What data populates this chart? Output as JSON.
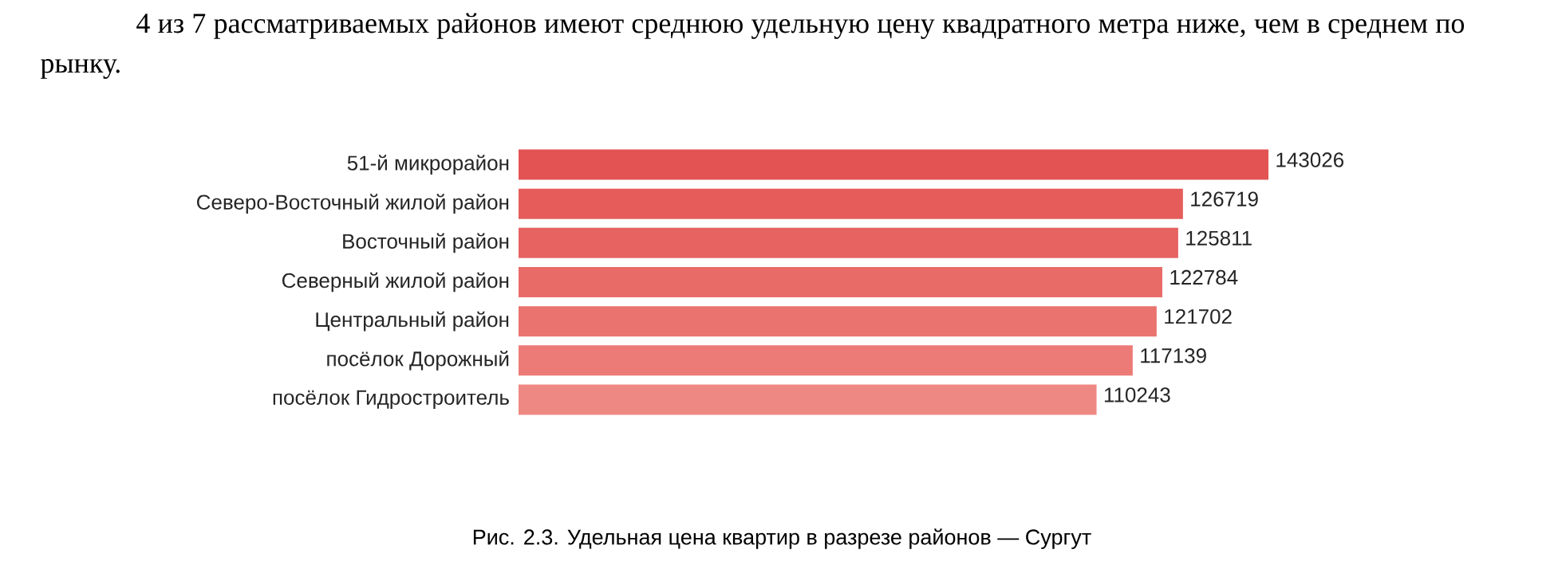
{
  "chart_data": {
    "type": "bar",
    "orientation": "horizontal",
    "title": "4 из 7 рассматриваемых районов имеют среднюю удельную цену квадратного метра ниже, чем в среднем по рынку.",
    "categories": [
      "51-й микрорайон",
      "Северо-Восточный жилой район",
      "Восточный район",
      "Северный жилой район",
      "Центральный район",
      "посёлок Дорожный",
      "посёлок Гидростроитель"
    ],
    "values": [
      143026,
      126719,
      125811,
      122784,
      121702,
      117139,
      110243
    ],
    "colors": [
      "#e45353",
      "#e55c5a",
      "#e66361",
      "#e86b68",
      "#ea736f",
      "#ec7b77",
      "#ee8883"
    ],
    "data_labels": true,
    "tick_labels": "y",
    "annotations": [
      "Рис. 2.3. Удельная цена квартир в разрезе районов — Сургут"
    ]
  }
}
